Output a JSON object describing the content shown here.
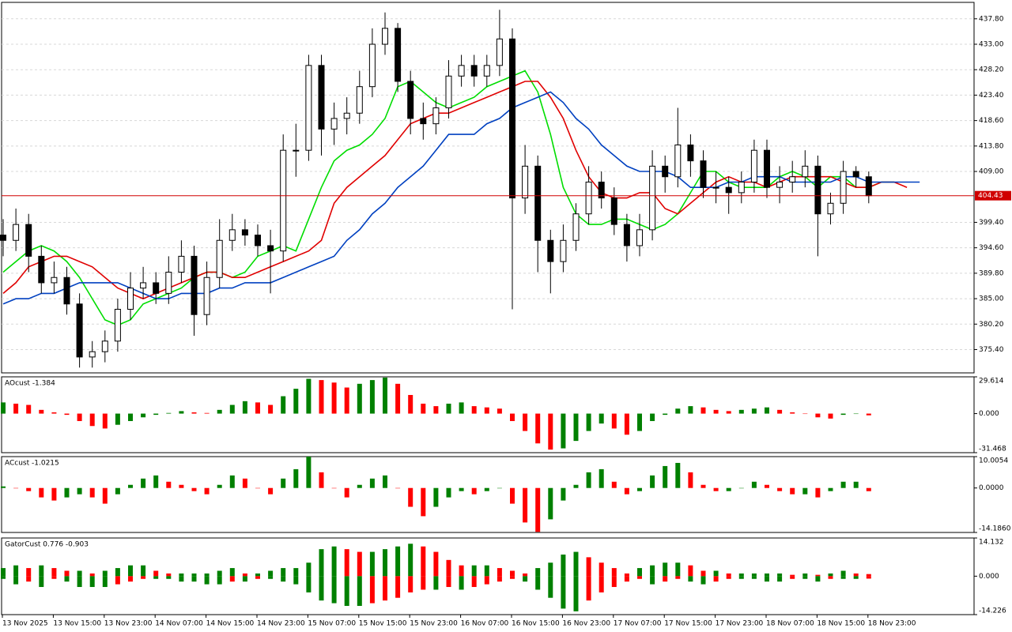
{
  "chart_data": [
    {
      "type": "candlestick",
      "categories": [
        "13 Nov 2025",
        null,
        null,
        null,
        "13 Nov 15:00",
        null,
        null,
        null,
        "13 Nov 23:00",
        null,
        null,
        null,
        "14 Nov 07:00",
        null,
        null,
        null,
        "14 Nov 15:00",
        null,
        null,
        null,
        "14 Nov 23:00",
        null,
        null,
        null,
        "15 Nov 07:00",
        null,
        null,
        null,
        "15 Nov 15:00",
        null,
        null,
        null,
        "15 Nov 23:00",
        null,
        null,
        null,
        "16 Nov 07:00",
        null,
        null,
        null,
        "16 Nov 15:00",
        null,
        null,
        null,
        "16 Nov 23:00",
        null,
        null,
        null,
        "17 Nov 07:00",
        null,
        null,
        null,
        "17 Nov 15:00",
        null,
        null,
        null,
        "17 Nov 23:00",
        null,
        null,
        null,
        "18 Nov 07:00",
        null,
        null,
        null,
        "18 Nov 15:00",
        null,
        null,
        null,
        "18 Nov 23:00",
        null,
        null,
        null,
        null
      ],
      "open": [
        397,
        396,
        399,
        393,
        388,
        389,
        384,
        374,
        375,
        377,
        383,
        387,
        388,
        386,
        390,
        393,
        382,
        389,
        396,
        398,
        397,
        395,
        394,
        413,
        413,
        429,
        417,
        419,
        420,
        425,
        433,
        436,
        426,
        419,
        418,
        421,
        427,
        429,
        427,
        429,
        434,
        404,
        410,
        396,
        392,
        396,
        401,
        407,
        404,
        399,
        395,
        398,
        410,
        408,
        414,
        411,
        406,
        406,
        405,
        407,
        413,
        406,
        407,
        408,
        410,
        401,
        403,
        409,
        408,
        null,
        null,
        null,
        null
      ],
      "high": [
        400,
        402,
        401,
        395,
        392,
        391,
        386,
        377,
        379,
        385,
        390,
        391,
        390,
        393,
        396,
        395,
        392,
        400,
        401,
        400,
        399,
        398,
        416,
        418,
        431,
        431,
        422,
        423,
        428,
        436,
        439,
        437,
        428,
        422,
        423,
        430,
        431,
        431,
        431,
        439.5,
        436,
        414,
        412,
        398,
        399,
        403,
        410,
        409,
        406,
        401,
        401,
        413,
        412,
        421,
        416,
        413,
        409,
        408,
        409,
        415,
        415,
        410,
        411,
        413,
        412,
        405,
        411,
        410,
        409,
        null,
        null,
        null,
        null
      ],
      "low": [
        393,
        394,
        390,
        386,
        386,
        382,
        372,
        372,
        373,
        375,
        381,
        385,
        384,
        384,
        388,
        378,
        380,
        387,
        394,
        395,
        393,
        386,
        392,
        408,
        411,
        412,
        414,
        416,
        418,
        423,
        431,
        424,
        416,
        415,
        416,
        419,
        425,
        425,
        425,
        427,
        383,
        401,
        390,
        386,
        390,
        394,
        399,
        402,
        397,
        392,
        393,
        396,
        405,
        406,
        408,
        404,
        403,
        401,
        403,
        405,
        404,
        403,
        405,
        406,
        393,
        399,
        401,
        406,
        403,
        null,
        null,
        null,
        null
      ],
      "close": [
        396,
        399,
        393,
        388,
        389,
        384,
        374,
        375,
        377,
        383,
        387,
        388,
        386,
        390,
        393,
        382,
        389,
        396,
        398,
        397,
        395,
        394,
        413,
        413,
        429,
        417,
        419,
        420,
        425,
        433,
        436,
        426,
        419,
        418,
        421,
        427,
        429,
        427,
        429,
        434,
        404,
        410,
        396,
        392,
        396,
        401,
        407,
        404,
        399,
        395,
        398,
        410,
        408,
        414,
        411,
        406,
        406,
        405,
        407,
        413,
        406,
        407,
        408,
        410,
        401,
        403,
        409,
        408,
        404.43,
        null,
        null,
        null,
        null
      ],
      "up_color": "#ffffff",
      "down_color": "#000000",
      "series": [
        {
          "color": "#00dd00",
          "values": [
            390,
            392,
            394,
            395,
            394,
            392,
            389,
            385,
            381,
            380,
            381,
            384,
            385,
            386,
            387,
            389,
            390,
            390,
            389,
            390,
            393,
            394,
            395,
            394,
            400,
            406,
            411,
            413,
            414,
            416,
            419,
            425,
            426,
            424,
            422,
            421,
            422,
            423,
            425,
            426,
            427,
            428,
            424,
            416,
            406,
            401,
            399,
            399,
            400,
            400,
            399,
            398,
            399,
            401,
            405,
            409,
            409,
            407,
            406,
            406,
            406,
            408,
            409,
            408,
            406,
            408,
            408,
            406,
            406,
            407,
            407,
            null,
            null
          ]
        },
        {
          "color": "#e00000",
          "values": [
            386,
            388,
            391,
            392,
            393,
            393,
            392,
            391,
            389,
            387,
            386,
            385,
            386,
            387,
            388,
            389,
            390,
            390,
            389,
            389,
            390,
            391,
            392,
            393,
            394,
            396,
            403,
            406,
            408,
            410,
            412,
            415,
            418,
            419,
            420,
            420,
            421,
            422,
            423,
            424,
            425,
            426,
            426,
            423,
            419,
            413,
            408,
            405,
            404,
            404,
            405,
            405,
            402,
            401,
            403,
            405,
            407,
            408,
            407,
            407,
            406,
            407,
            408,
            408,
            408,
            408,
            407,
            406,
            406,
            407,
            407,
            406,
            null
          ]
        },
        {
          "color": "#0040c0",
          "values": [
            384,
            385,
            385,
            386,
            386,
            387,
            388,
            388,
            388,
            388,
            387,
            386,
            385,
            385,
            386,
            386,
            386,
            387,
            387,
            388,
            388,
            388,
            389,
            390,
            391,
            392,
            393,
            396,
            398,
            401,
            403,
            406,
            408,
            410,
            413,
            416,
            416,
            416,
            418,
            419,
            421,
            422,
            423,
            424,
            422,
            419,
            417,
            414,
            412,
            410,
            409,
            409,
            409,
            408,
            406,
            406,
            406,
            407,
            407,
            408,
            408,
            408,
            407,
            407,
            407,
            407,
            408,
            408,
            407,
            407,
            407,
            407,
            407
          ]
        }
      ],
      "ylim": [
        371.0,
        440.9
      ],
      "yticks": [
        {
          "value": 437.8,
          "label": "437.80"
        },
        {
          "value": 433.0,
          "label": "433.00"
        },
        {
          "value": 428.2,
          "label": "428.20"
        },
        {
          "value": 423.4,
          "label": "423.40"
        },
        {
          "value": 418.6,
          "label": "418.60"
        },
        {
          "value": 413.8,
          "label": "413.80"
        },
        {
          "value": 409.0,
          "label": "409.00"
        },
        {
          "value": 399.4,
          "label": "399.40"
        },
        {
          "value": 394.6,
          "label": "394.60"
        },
        {
          "value": 389.8,
          "label": "389.80"
        },
        {
          "value": 385.0,
          "label": "385.00"
        },
        {
          "value": 380.2,
          "label": "380.20"
        },
        {
          "value": 375.4,
          "label": "375.40"
        }
      ],
      "grid": true,
      "current_price": {
        "value": 404.43,
        "label": "404.43"
      },
      "price_line_color": "#d00000"
    },
    {
      "type": "histogram",
      "title": "AOcust -1.384",
      "values": [
        9,
        8,
        7,
        3,
        1,
        -1,
        -6,
        -10,
        -12,
        -9,
        -6,
        -3,
        -1,
        0.5,
        2,
        1,
        0.5,
        3,
        7,
        10,
        9,
        7,
        14,
        20,
        28,
        27,
        25,
        21,
        24,
        27,
        29,
        24,
        15,
        8,
        6,
        8,
        9,
        6,
        5,
        4,
        -6,
        -14,
        -24,
        -29,
        -28,
        -22,
        -14,
        -8,
        -12,
        -17,
        -14,
        -6,
        -1,
        4,
        6,
        5,
        3,
        2,
        3,
        4,
        5,
        3,
        1,
        0,
        -3,
        -4,
        -1,
        0,
        -1.384
      ],
      "up_color": "#008000",
      "down_color": "#ff0000",
      "ylim": [
        -31.468,
        29.614
      ],
      "yticks": [
        {
          "value": 29.614,
          "label": "29.614"
        },
        {
          "value": 0,
          "label": "0.000"
        },
        {
          "value": -31.468,
          "label": "-31.468"
        }
      ]
    },
    {
      "type": "histogram",
      "title": "ACcust -1.0215",
      "values": [
        0.5,
        0,
        -1,
        -3,
        -4,
        -3,
        -2,
        -3,
        -5,
        -2,
        1,
        3,
        4,
        2,
        1,
        -1,
        -2,
        1,
        4,
        3,
        0,
        -2,
        3,
        6,
        10,
        5,
        0,
        -3,
        1,
        3,
        4,
        0,
        -6,
        -9,
        -6,
        -3,
        -1,
        -2,
        -1,
        0,
        -5,
        -11,
        -14,
        -10,
        -4,
        1,
        5,
        6,
        2,
        -2,
        -1,
        4,
        7,
        8,
        5,
        1,
        -1,
        -1,
        0,
        2,
        1,
        -1,
        -2,
        -2,
        -3,
        -1,
        2,
        2,
        -1.0215
      ],
      "up_color": "#008000",
      "down_color": "#ff0000",
      "ylim": [
        -14.186,
        10.0054
      ],
      "yticks": [
        {
          "value": 10.0054,
          "label": "10.0054"
        },
        {
          "value": 0,
          "label": "0.0000"
        },
        {
          "value": -14.186,
          "label": "-14.1860"
        }
      ]
    },
    {
      "type": "gator",
      "title": "GatorCust 0.776 -0.903",
      "series": [
        {
          "values": [
            3,
            4,
            3,
            4,
            3,
            2,
            2,
            1,
            2,
            3,
            4,
            4,
            2,
            1,
            1,
            1,
            1,
            2,
            3,
            1,
            1,
            2,
            3,
            3,
            5,
            10,
            11,
            10,
            9,
            9,
            10,
            11,
            12,
            11,
            9,
            6,
            4,
            4,
            4,
            3,
            2,
            1,
            3,
            5,
            8,
            9,
            7,
            5,
            3,
            1,
            3,
            4,
            5,
            5,
            4,
            2,
            2,
            1,
            1,
            1,
            1,
            1,
            0.5,
            1,
            0.5,
            1,
            2,
            1,
            0.776
          ]
        },
        {
          "values": [
            -1,
            -3,
            -2,
            -4,
            -1,
            -2,
            -4,
            -4,
            -4,
            -3,
            -2,
            -1,
            -1,
            -1,
            -2,
            -2,
            -3,
            -3,
            -2,
            -2,
            -1,
            -1,
            -2,
            -3,
            -6,
            -9,
            -10,
            -11,
            -11,
            -10,
            -9,
            -8,
            -6,
            -5,
            -5,
            -4,
            -5,
            -4,
            -3,
            -2,
            -1,
            -2,
            -5,
            -8,
            -12,
            -13,
            -9,
            -6,
            -4,
            -2,
            -1,
            -3,
            -2,
            -1,
            -2,
            -3,
            -2,
            -1,
            -1,
            -1,
            -2,
            -2,
            -1,
            -1,
            -2,
            -1,
            -1,
            -1,
            -0.903
          ]
        }
      ],
      "up_color": "#008000",
      "down_color": "#ff0000",
      "ylim": [
        -14.226,
        14.132
      ],
      "yticks": [
        {
          "value": 14.132,
          "label": "14.132"
        },
        {
          "value": 0,
          "label": "0.000"
        },
        {
          "value": -14.226,
          "label": "-14.226"
        }
      ]
    }
  ]
}
